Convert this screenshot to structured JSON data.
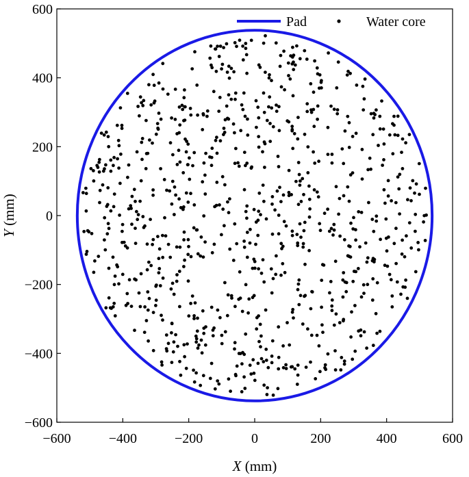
{
  "chart_data": {
    "type": "scatter",
    "title": "",
    "xlabel": {
      "var": "X",
      "unit": " (mm)"
    },
    "ylabel": {
      "var": "Y",
      "unit": " (mm)"
    },
    "xlim": [
      -600,
      600
    ],
    "ylim": [
      -600,
      600
    ],
    "xticks": [
      -600,
      -400,
      -200,
      0,
      200,
      400,
      600
    ],
    "yticks": [
      -600,
      -400,
      -200,
      0,
      200,
      400,
      600
    ],
    "xtick_labels": [
      "−600",
      "−400",
      "−200",
      "0",
      "200",
      "400",
      "600"
    ],
    "ytick_labels": [
      "−600",
      "−400",
      "−200",
      "0",
      "200",
      "400",
      "600"
    ],
    "grid": false,
    "legend_position": "top-right",
    "series": [
      {
        "name": "Pad",
        "kind": "circle",
        "center": [
          0,
          0
        ],
        "radius": 538,
        "color": "#1a1ae6"
      },
      {
        "name": "Water core",
        "kind": "points",
        "color": "#000000",
        "count": 900,
        "distribution": "random uniform within pad circle",
        "radius_limit": 525,
        "seed": 20240517
      }
    ]
  }
}
